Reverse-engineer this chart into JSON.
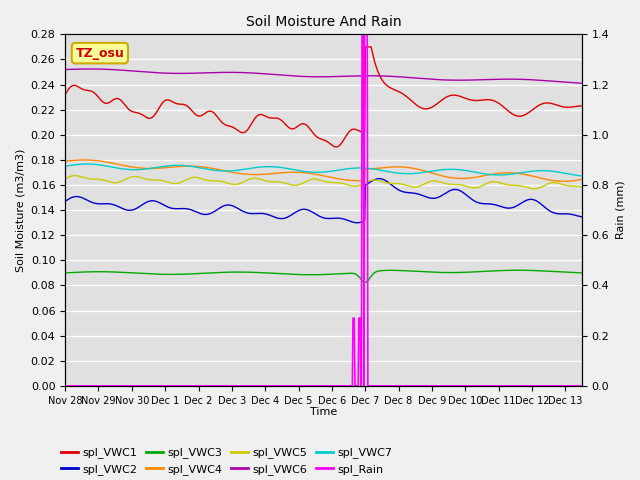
{
  "title": "Soil Moisture And Rain",
  "xlabel": "Time",
  "ylabel_left": "Soil Moisture (m3/m3)",
  "ylabel_right": "Rain (mm)",
  "annotation": "TZ_osu",
  "ylim_left": [
    0.0,
    0.28
  ],
  "ylim_right": [
    0.0,
    1.4
  ],
  "rain_event_day": 9.0,
  "series": {
    "spl_VWC1": {
      "color": "#dd0000",
      "label": "spl_VWC1"
    },
    "spl_VWC2": {
      "color": "#0000cc",
      "label": "spl_VWC2"
    },
    "spl_VWC3": {
      "color": "#00aa00",
      "label": "spl_VWC3"
    },
    "spl_VWC4": {
      "color": "#ff8800",
      "label": "spl_VWC4"
    },
    "spl_VWC5": {
      "color": "#cccc00",
      "label": "spl_VWC5"
    },
    "spl_VWC6": {
      "color": "#aa00aa",
      "label": "spl_VWC6"
    },
    "spl_VWC7": {
      "color": "#00cccc",
      "label": "spl_VWC7"
    },
    "spl_Rain": {
      "color": "#ff00ff",
      "label": "spl_Rain"
    }
  },
  "xtick_labels": [
    "Nov 28",
    "Nov 29",
    "Nov 30",
    "Dec 1",
    "Dec 2",
    "Dec 3",
    "Dec 4",
    "Dec 5",
    "Dec 6",
    "Dec 7",
    "Dec 8",
    "Dec 9",
    "Dec 10",
    "Dec 11",
    "Dec 12",
    "Dec 13"
  ],
  "background_color": "#e0e0e0",
  "figure_color": "#f0f0f0",
  "grid_color": "#ffffff",
  "annotation_bg": "#ffff99",
  "annotation_border": "#ccaa00",
  "annotation_text_color": "#cc0000",
  "legend_row1": [
    "spl_VWC1",
    "spl_VWC2",
    "spl_VWC3",
    "spl_VWC4",
    "spl_VWC5",
    "spl_VWC6"
  ],
  "legend_row2": [
    "spl_VWC7",
    "spl_Rain"
  ]
}
